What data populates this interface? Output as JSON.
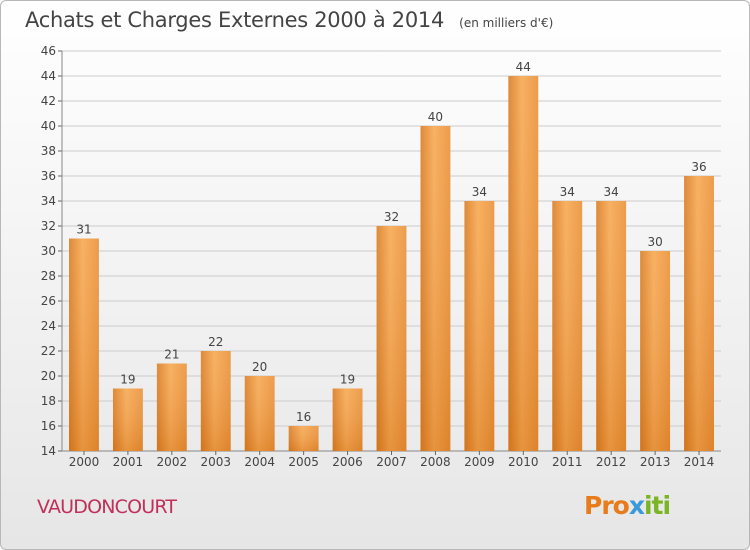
{
  "title": "Achats et Charges Externes 2000 à 2014",
  "subtitle": "(en milliers d'€)",
  "commune": "VAUDONCOURT",
  "logo": {
    "part1": "Pro",
    "part2": "x",
    "part3": "iti"
  },
  "colors": {
    "bar_light": "#f7a64d",
    "bar_dark": "#d97a1e",
    "grid": "#cccccc",
    "text": "#444444",
    "commune": "#c0305a"
  },
  "chart_data": {
    "type": "bar",
    "title": "Achats et Charges Externes 2000 à 2014",
    "subtitle": "(en milliers d'€)",
    "xlabel": "",
    "ylabel": "",
    "categories": [
      "2000",
      "2001",
      "2002",
      "2003",
      "2004",
      "2005",
      "2006",
      "2007",
      "2008",
      "2009",
      "2010",
      "2011",
      "2012",
      "2013",
      "2014"
    ],
    "values": [
      31,
      19,
      21,
      22,
      20,
      16,
      19,
      32,
      40,
      34,
      44,
      34,
      34,
      30,
      36
    ],
    "ylim": [
      14,
      46
    ],
    "yticks": [
      14,
      16,
      18,
      20,
      22,
      24,
      26,
      28,
      30,
      32,
      34,
      36,
      38,
      40,
      42,
      44,
      46
    ],
    "grid": true,
    "data_labels": true
  }
}
